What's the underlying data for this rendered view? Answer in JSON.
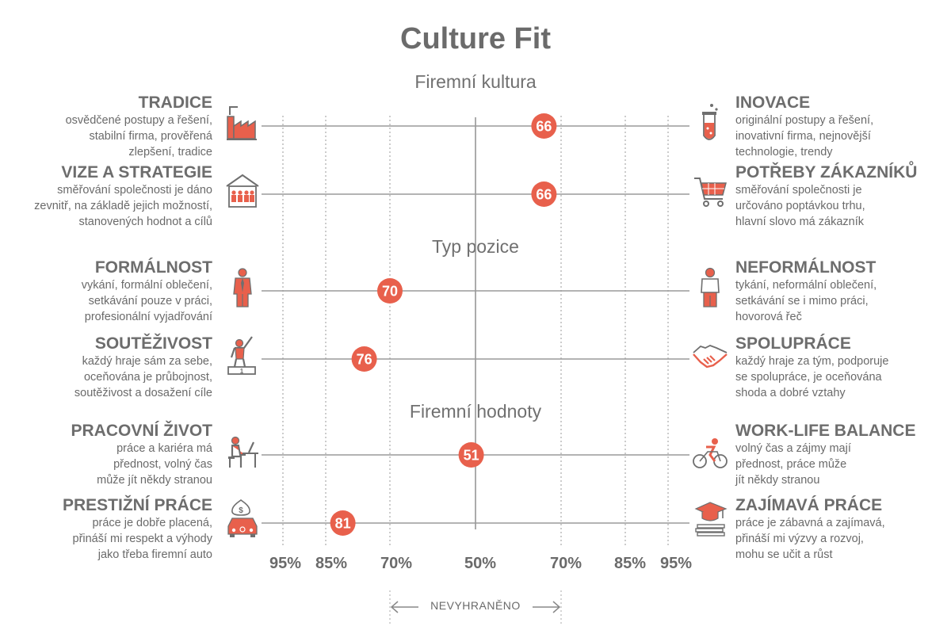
{
  "title": "Culture Fit",
  "sections": [
    "Firemní kultura",
    "Typ pozice",
    "Firemní hodnoty"
  ],
  "colors": {
    "accent": "#e8604c",
    "line": "#9a9a9a",
    "text": "#6d6d6d"
  },
  "rows": [
    {
      "left_title": "TRADICE",
      "left_desc": [
        "osvědčené postupy a řešení,",
        "stabilní firma, prověřená",
        "zlepšení, tradice"
      ],
      "left_icon": "factory-icon",
      "right_title": "INOVACE",
      "right_desc": [
        "originální postupy a řešení,",
        "inovativní firma, nejnovější",
        "technologie, trendy"
      ],
      "right_icon": "test-tube-icon",
      "label": "66"
    },
    {
      "left_title": "VIZE A STRATEGIE",
      "left_desc": [
        "směřování společnosti je dáno",
        "zevnitř, na základě jejich možností,",
        "stanovených hodnot a cílů"
      ],
      "left_icon": "company-people-icon",
      "right_title": "POTŘEBY ZÁKAZNÍKŮ",
      "right_desc": [
        "směřování společnosti je",
        "určováno poptávkou trhu,",
        "hlavní slovo má zákazník"
      ],
      "right_icon": "shopping-cart-icon",
      "label": "66"
    },
    {
      "left_title": "FORMÁLNOST",
      "left_desc": [
        "vykání, formální oblečení,",
        "setkávání pouze v práci,",
        "profesionální vyjadřování"
      ],
      "left_icon": "businessman-icon",
      "right_title": "NEFORMÁLNOST",
      "right_desc": [
        "tykání, neformální oblečení,",
        "setkávání se i mimo práci,",
        "hovorová řeč"
      ],
      "right_icon": "casual-person-icon",
      "label": "70"
    },
    {
      "left_title": "SOUTĚŽIVOST",
      "left_desc": [
        "každý hraje sám za sebe,",
        "oceňována je průbojnost,",
        "soutěživost a dosažení cíle"
      ],
      "left_icon": "winner-podium-icon",
      "right_title": "SPOLUPRÁCE",
      "right_desc": [
        "každý hraje za tým, podporuje",
        "se spolupráce, je oceňována",
        "shoda a dobré vztahy"
      ],
      "right_icon": "handshake-icon",
      "label": "76"
    },
    {
      "left_title": "PRACOVNÍ ŽIVOT",
      "left_desc": [
        "práce a kariéra má",
        "přednost, volný čas",
        "může jít někdy stranou"
      ],
      "left_icon": "desk-worker-icon",
      "right_title": "WORK-LIFE BALANCE",
      "right_desc": [
        "volný čas a zájmy mají",
        "přednost, práce může",
        "jít někdy stranou"
      ],
      "right_icon": "cyclist-icon",
      "label": "51"
    },
    {
      "left_title": "PRESTIŽNÍ PRÁCE",
      "left_desc": [
        "práce je dobře placená,",
        "přináší mi respekt a výhody",
        "jako třeba firemní auto"
      ],
      "left_icon": "money-car-icon",
      "right_title": "ZAJÍMAVÁ PRÁCE",
      "right_desc": [
        "práce je zábavná a zajímavá,",
        "přináší mi výzvy a rozvoj,",
        "mohu se učit a růst"
      ],
      "right_icon": "graduation-books-icon",
      "label": "81"
    }
  ],
  "chart_data": {
    "type": "scatter",
    "title": "Culture Fit",
    "scale_ticks": [
      "95%",
      "85%",
      "70%",
      "50%",
      "70%",
      "85%",
      "95%"
    ],
    "scale_tick_positions": [
      -95,
      -85,
      -70,
      50,
      70,
      85,
      95
    ],
    "xlim": [
      -100,
      100
    ],
    "points": [
      {
        "row": "TRADICE – INOVACE",
        "value": 66,
        "side": "right",
        "label": "66"
      },
      {
        "row": "VIZE A STRATEGIE – POTŘEBY ZÁKAZNÍKŮ",
        "value": 66,
        "side": "right",
        "label": "66"
      },
      {
        "row": "FORMÁLNOST – NEFORMÁLNOST",
        "value": 70,
        "side": "left",
        "label": "70"
      },
      {
        "row": "SOUTĚŽIVOST – SPOLUPRÁCE",
        "value": 76,
        "side": "left",
        "label": "76"
      },
      {
        "row": "PRACOVNÍ ŽIVOT – WORK-LIFE BALANCE",
        "value": 51,
        "side": "left",
        "label": "51"
      },
      {
        "row": "PRESTIŽNÍ PRÁCE – ZAJÍMAVÁ PRÁCE",
        "value": 81,
        "side": "left",
        "label": "81"
      }
    ],
    "undecided_label": "NEVYHRANĚNO",
    "undecided_range": [
      "70%",
      "70%"
    ],
    "grid": true
  }
}
